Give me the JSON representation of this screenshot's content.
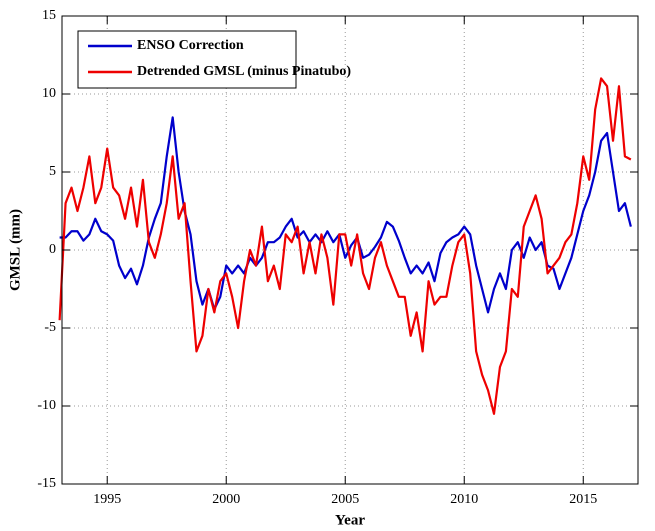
{
  "chart_data": {
    "type": "line",
    "x_label": "Year",
    "y_label": "GMSL (mm)",
    "x": [
      1993,
      1993.25,
      1993.5,
      1993.75,
      1994,
      1994.25,
      1994.5,
      1994.75,
      1995,
      1995.25,
      1995.5,
      1995.75,
      1996,
      1996.25,
      1996.5,
      1996.75,
      1997,
      1997.25,
      1997.5,
      1997.75,
      1998,
      1998.25,
      1998.5,
      1998.75,
      1999,
      1999.25,
      1999.5,
      1999.75,
      2000,
      2000.25,
      2000.5,
      2000.75,
      2001,
      2001.25,
      2001.5,
      2001.75,
      2002,
      2002.25,
      2002.5,
      2002.75,
      2003,
      2003.25,
      2003.5,
      2003.75,
      2004,
      2004.25,
      2004.5,
      2004.75,
      2005,
      2005.25,
      2005.5,
      2005.75,
      2006,
      2006.25,
      2006.5,
      2006.75,
      2007,
      2007.25,
      2007.5,
      2007.75,
      2008,
      2008.25,
      2008.5,
      2008.75,
      2009,
      2009.25,
      2009.5,
      2009.75,
      2010,
      2010.25,
      2010.5,
      2010.75,
      2011,
      2011.25,
      2011.5,
      2011.75,
      2012,
      2012.25,
      2012.5,
      2012.75,
      2013,
      2013.25,
      2013.5,
      2013.75,
      2014,
      2014.25,
      2014.5,
      2014.75,
      2015,
      2015.25,
      2015.5,
      2015.75,
      2016,
      2016.25,
      2016.5,
      2016.75,
      2017
    ],
    "series": [
      {
        "name": "ENSO Correction",
        "color": "#0000cc",
        "values": [
          0.8,
          0.8,
          1.2,
          1.2,
          0.6,
          1.0,
          2.0,
          1.2,
          1.0,
          0.6,
          -1.0,
          -1.8,
          -1.2,
          -2.2,
          -1.0,
          0.8,
          2.0,
          3.0,
          6.0,
          8.5,
          5.0,
          2.5,
          1.0,
          -2.0,
          -3.5,
          -2.5,
          -3.8,
          -3.0,
          -1.0,
          -1.5,
          -1.0,
          -1.5,
          -0.5,
          -1.0,
          -0.5,
          0.5,
          0.5,
          0.8,
          1.5,
          2.0,
          0.8,
          1.2,
          0.5,
          1.0,
          0.5,
          1.2,
          0.5,
          1.0,
          -0.5,
          0.3,
          0.8,
          -0.5,
          -0.3,
          0.2,
          0.8,
          1.8,
          1.5,
          0.6,
          -0.5,
          -1.5,
          -1.0,
          -1.5,
          -0.8,
          -2.0,
          -0.2,
          0.5,
          0.8,
          1.0,
          1.5,
          1.0,
          -1.0,
          -2.5,
          -4.0,
          -2.5,
          -1.5,
          -2.5,
          0.0,
          0.5,
          -0.5,
          0.8,
          0.0,
          0.5,
          -1.0,
          -1.2,
          -2.5,
          -1.5,
          -0.5,
          1.0,
          2.5,
          3.5,
          5.0,
          7.0,
          7.5,
          5.0,
          2.5,
          3.0,
          1.5
        ]
      },
      {
        "name": "Detrended GMSL (minus Pinatubo)",
        "color": "#ee0000",
        "values": [
          -4.5,
          3.0,
          4.0,
          2.5,
          4.0,
          6.0,
          3.0,
          4.0,
          6.5,
          4.0,
          3.5,
          2.0,
          4.0,
          1.5,
          4.5,
          0.5,
          -0.5,
          1.0,
          3.0,
          6.0,
          2.0,
          3.0,
          -2.0,
          -6.5,
          -5.5,
          -2.5,
          -4.0,
          -2.0,
          -1.5,
          -3.0,
          -5.0,
          -2.0,
          0.0,
          -1.0,
          1.5,
          -2.0,
          -1.0,
          -2.5,
          1.0,
          0.5,
          1.5,
          -1.5,
          0.5,
          -1.5,
          1.0,
          -0.5,
          -3.5,
          1.0,
          1.0,
          -1.0,
          1.0,
          -1.5,
          -2.5,
          -0.5,
          0.5,
          -1.0,
          -2.0,
          -3.0,
          -3.0,
          -5.5,
          -4.0,
          -6.5,
          -2.0,
          -3.5,
          -3.0,
          -3.0,
          -1.0,
          0.5,
          1.0,
          -1.5,
          -6.5,
          -8.0,
          -9.0,
          -10.5,
          -7.5,
          -6.5,
          -2.5,
          -3.0,
          1.5,
          2.5,
          3.5,
          2.0,
          -1.5,
          -1.0,
          -0.5,
          0.5,
          1.0,
          3.0,
          6.0,
          4.5,
          9.0,
          11.0,
          10.5,
          7.0,
          10.5,
          6.0,
          5.8
        ]
      }
    ],
    "xlim": [
      1993.1,
      2017.3
    ],
    "xticks": [
      1995,
      2000,
      2005,
      2010,
      2015
    ],
    "ylim": [
      -15,
      15
    ],
    "yticks": [
      -15,
      -10,
      -5,
      0,
      5,
      10,
      15
    ],
    "grid": true,
    "legend": "upper left"
  }
}
